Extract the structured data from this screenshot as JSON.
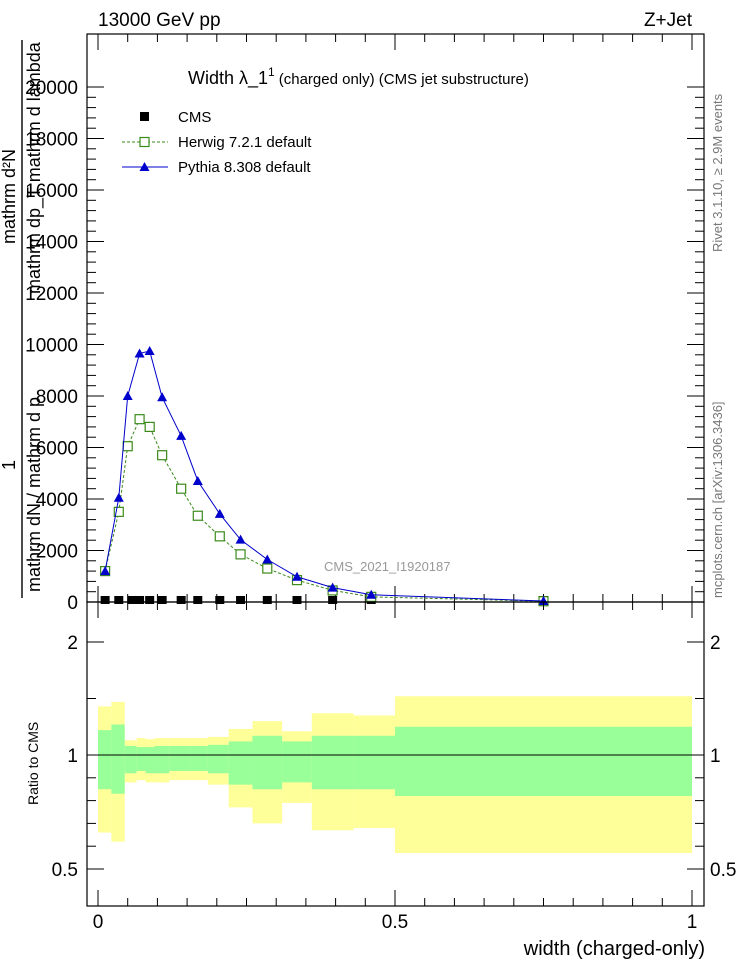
{
  "header": {
    "left": "13000 GeV pp",
    "right": "Z+Jet"
  },
  "side_labels": {
    "rivet": "Rivet 3.1.10, ≥ 2.9M events",
    "mcplots": "mcplots.cern.ch [arXiv:1306.3436]"
  },
  "chart_data": [
    {
      "type": "line",
      "title_main": "Width λ_1",
      "title_sup": "1",
      "title_rest": "(charged only) (CMS jet substructure)",
      "ylabel_num": "mathrm d²N",
      "ylabel_den": "mathrm dp_T mathrm d lambda",
      "ylabel_pre": "1",
      "ylabel_frac": "mathrm dN / mathrm d p",
      "analysis_label": "CMS_2021_I1920187",
      "xlim": [
        0,
        1
      ],
      "ylim": [
        0,
        22000
      ],
      "yticks": [
        0,
        2000,
        4000,
        6000,
        8000,
        10000,
        12000,
        14000,
        16000,
        18000,
        20000
      ],
      "ytick_labels": [
        "0",
        "2000",
        "4000",
        "6000",
        "8000",
        "10000",
        "12000",
        "14000",
        "16000",
        "18000",
        "20000"
      ],
      "legend": [
        "CMS",
        "Herwig 7.2.1 default",
        "Pythia 8.308 default"
      ],
      "series": [
        {
          "name": "CMS",
          "color": "#000000",
          "marker": "square-filled",
          "x": [
            0.012,
            0.035,
            0.057,
            0.07,
            0.087,
            0.108,
            0.14,
            0.168,
            0.205,
            0.24,
            0.285,
            0.335,
            0.395,
            0.46,
            0.75
          ],
          "y": [
            20,
            20,
            20,
            20,
            20,
            20,
            20,
            20,
            20,
            20,
            20,
            20,
            20,
            20,
            20
          ]
        },
        {
          "name": "Herwig 7.2.1 default",
          "color": "#3a8a1a",
          "marker": "square-open",
          "dashed": true,
          "x": [
            0.012,
            0.035,
            0.05,
            0.07,
            0.087,
            0.108,
            0.14,
            0.168,
            0.205,
            0.24,
            0.285,
            0.335,
            0.395,
            0.46,
            0.75
          ],
          "y": [
            1200,
            3500,
            6050,
            7100,
            6800,
            5700,
            4400,
            3350,
            2550,
            1850,
            1300,
            850,
            450,
            200,
            30
          ]
        },
        {
          "name": "Pythia 8.308 default",
          "color": "#0000cc",
          "marker": "triangle-filled",
          "x": [
            0.012,
            0.035,
            0.05,
            0.07,
            0.087,
            0.108,
            0.14,
            0.168,
            0.205,
            0.24,
            0.285,
            0.335,
            0.395,
            0.46,
            0.75
          ],
          "y": [
            1200,
            4050,
            8000,
            9650,
            9750,
            7950,
            6450,
            4700,
            3420,
            2420,
            1650,
            980,
            560,
            280,
            40
          ]
        }
      ]
    },
    {
      "type": "area",
      "ylabel": "Ratio to CMS",
      "xlabel": "width (charged-only)",
      "xlim": [
        0,
        1
      ],
      "ylim": [
        0.35,
        2.3
      ],
      "yticks": [
        0.5,
        1,
        2
      ],
      "ytick_labels": [
        "0.5",
        "1",
        "2"
      ],
      "xticks": [
        0,
        0.5,
        1
      ],
      "xtick_labels": [
        "0",
        "0.5",
        "1"
      ],
      "reference_line": 1,
      "bins": [
        {
          "lo": 0.0,
          "hi": 0.0225,
          "inner": [
            0.85,
            1.22
          ],
          "outer": [
            0.66,
            1.43
          ]
        },
        {
          "lo": 0.0225,
          "hi": 0.045,
          "inner": [
            0.83,
            1.27
          ],
          "outer": [
            0.62,
            1.47
          ]
        },
        {
          "lo": 0.045,
          "hi": 0.065,
          "inner": [
            0.92,
            1.08
          ],
          "outer": [
            0.88,
            1.13
          ]
        },
        {
          "lo": 0.065,
          "hi": 0.08,
          "inner": [
            0.93,
            1.07
          ],
          "outer": [
            0.89,
            1.15
          ]
        },
        {
          "lo": 0.08,
          "hi": 0.095,
          "inner": [
            0.92,
            1.07
          ],
          "outer": [
            0.88,
            1.14
          ]
        },
        {
          "lo": 0.095,
          "hi": 0.12,
          "inner": [
            0.92,
            1.08
          ],
          "outer": [
            0.88,
            1.15
          ]
        },
        {
          "lo": 0.12,
          "hi": 0.155,
          "inner": [
            0.93,
            1.08
          ],
          "outer": [
            0.89,
            1.15
          ]
        },
        {
          "lo": 0.155,
          "hi": 0.185,
          "inner": [
            0.93,
            1.08
          ],
          "outer": [
            0.89,
            1.15
          ]
        },
        {
          "lo": 0.185,
          "hi": 0.22,
          "inner": [
            0.92,
            1.09
          ],
          "outer": [
            0.87,
            1.16
          ]
        },
        {
          "lo": 0.22,
          "hi": 0.26,
          "inner": [
            0.87,
            1.12
          ],
          "outer": [
            0.77,
            1.23
          ]
        },
        {
          "lo": 0.26,
          "hi": 0.31,
          "inner": [
            0.85,
            1.17
          ],
          "outer": [
            0.7,
            1.3
          ]
        },
        {
          "lo": 0.31,
          "hi": 0.36,
          "inner": [
            0.88,
            1.12
          ],
          "outer": [
            0.79,
            1.21
          ]
        },
        {
          "lo": 0.36,
          "hi": 0.43,
          "inner": [
            0.85,
            1.17
          ],
          "outer": [
            0.67,
            1.37
          ]
        },
        {
          "lo": 0.43,
          "hi": 0.5,
          "inner": [
            0.85,
            1.17
          ],
          "outer": [
            0.68,
            1.35
          ]
        },
        {
          "lo": 0.5,
          "hi": 1.0,
          "inner": [
            0.82,
            1.25
          ],
          "outer": [
            0.57,
            1.52
          ]
        }
      ]
    }
  ]
}
